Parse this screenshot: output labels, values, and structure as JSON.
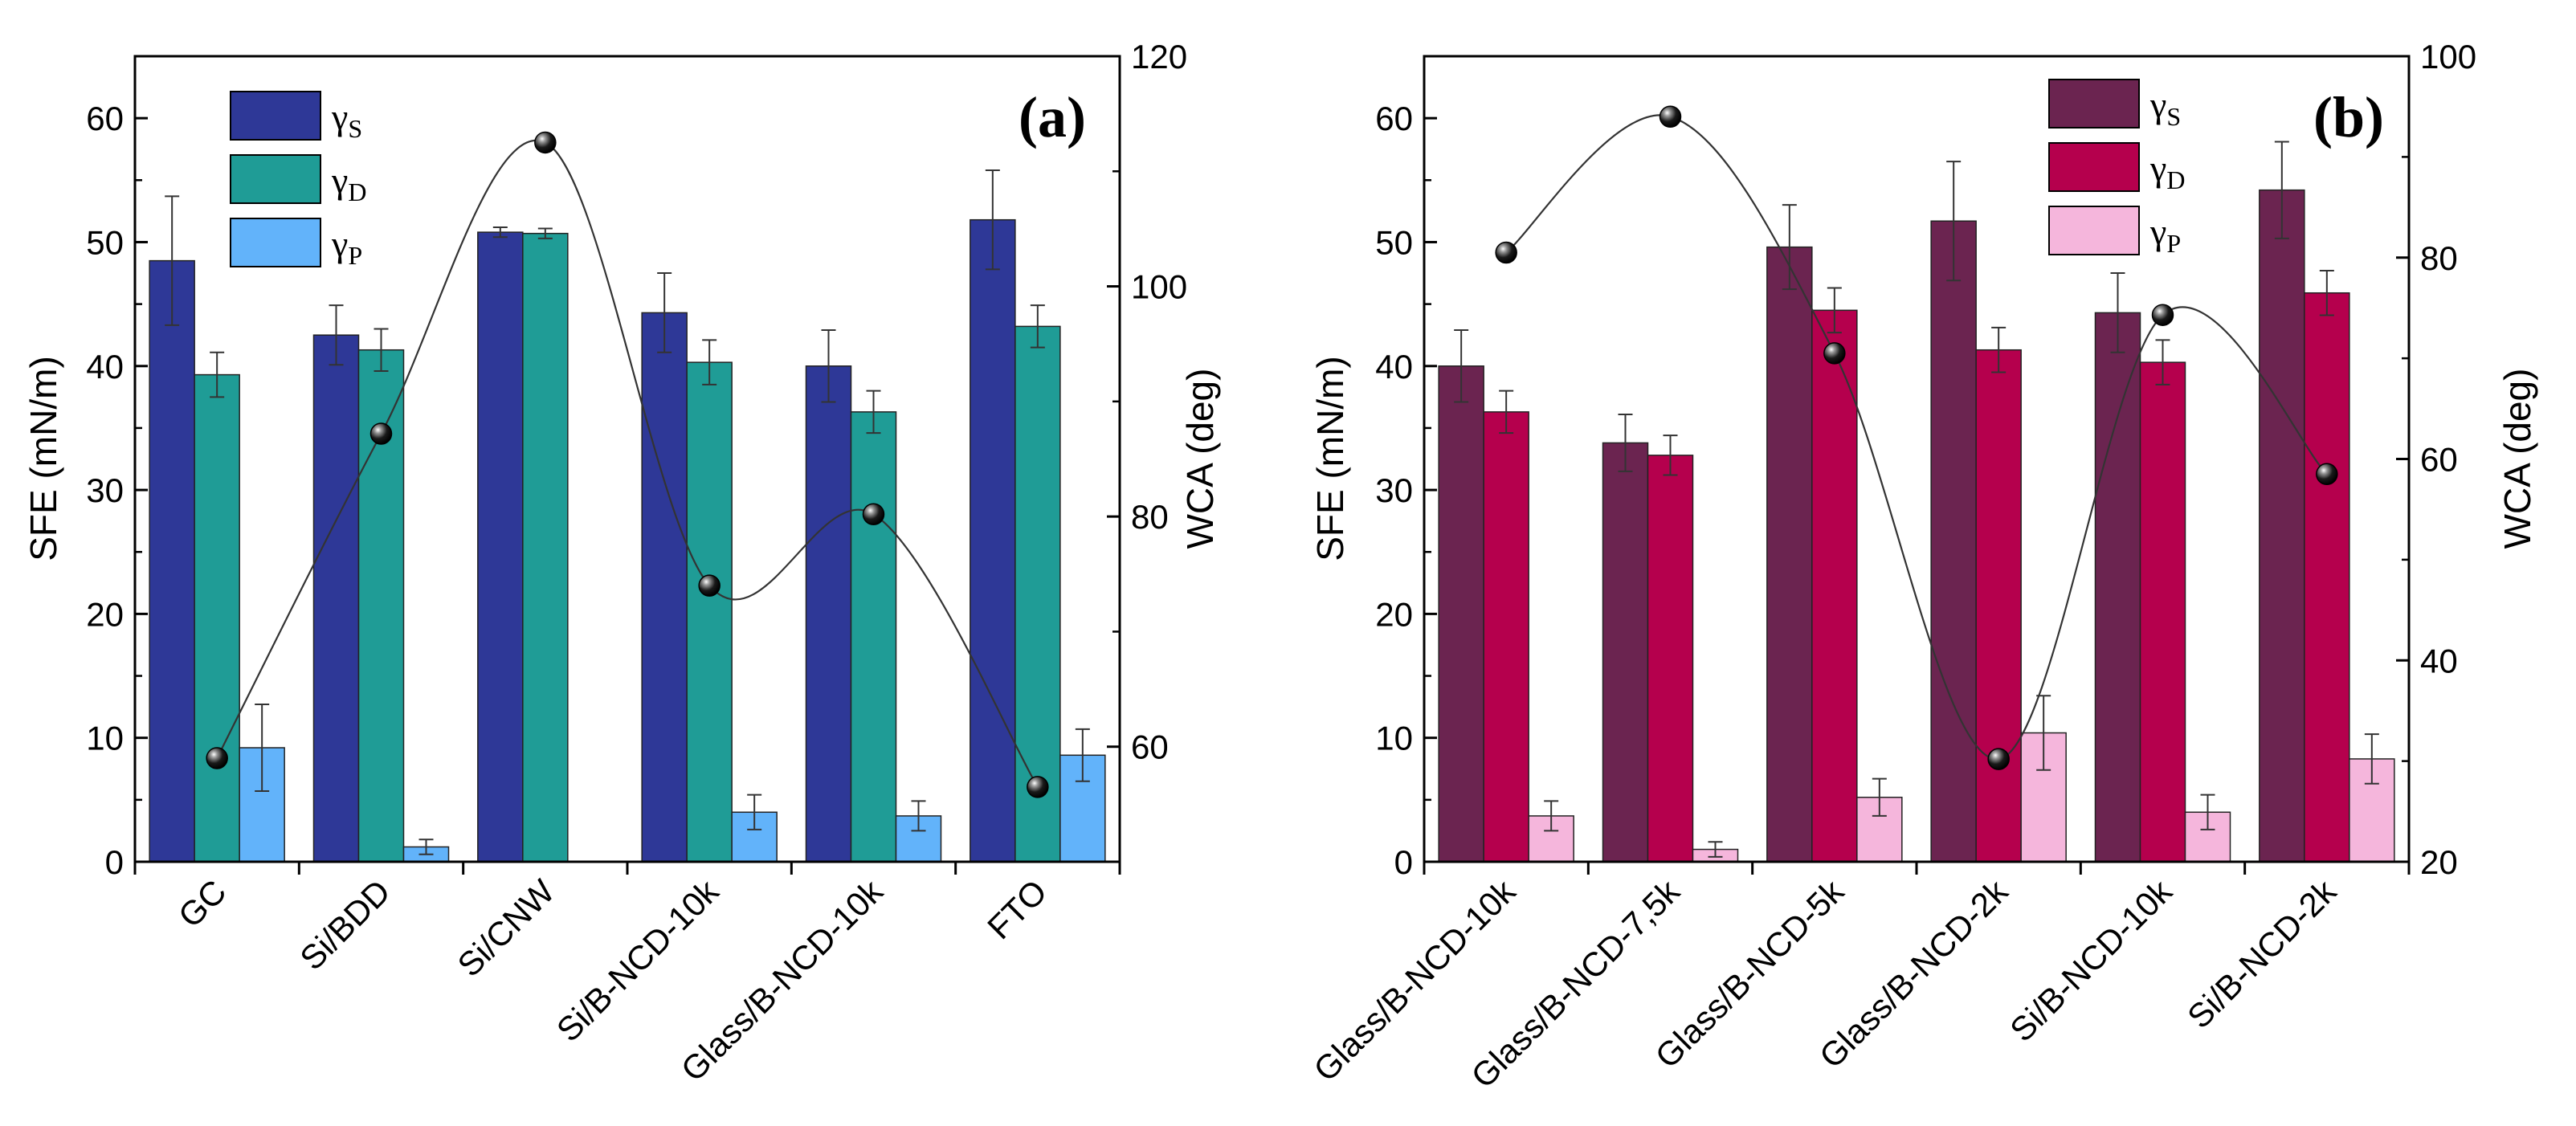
{
  "panels": [
    {
      "label": "(a)",
      "y_left_label": "SFE (mN/m)",
      "y_right_label": "WCA (deg)",
      "y_left_ticks": [
        "0",
        "10",
        "20",
        "30",
        "40",
        "50",
        "60"
      ],
      "y_right_ticks": [
        "60",
        "80",
        "100",
        "120"
      ],
      "legend": [
        {
          "sym": "γ",
          "sub": "S"
        },
        {
          "sym": "γ",
          "sub": "D"
        },
        {
          "sym": "γ",
          "sub": "P"
        }
      ],
      "colors": {
        "S": "#2e3897",
        "D": "#1f9c96",
        "P": "#62b3fa"
      }
    },
    {
      "label": "(b)",
      "y_left_label": "SFE (mN/m)",
      "y_right_label": "WCA (deg)",
      "y_left_ticks": [
        "0",
        "10",
        "20",
        "30",
        "40",
        "50",
        "60"
      ],
      "y_right_ticks": [
        "20",
        "40",
        "60",
        "80",
        "100"
      ],
      "legend": [
        {
          "sym": "γ",
          "sub": "S"
        },
        {
          "sym": "γ",
          "sub": "D"
        },
        {
          "sym": "γ",
          "sub": "P"
        }
      ],
      "colors": {
        "S": "#6b2450",
        "D": "#b5004d",
        "P": "#f5b6dc"
      }
    }
  ],
  "chart_data": [
    {
      "type": "bar",
      "title": "(a)",
      "xlabel": "",
      "ylabel": "SFE (mN/m)",
      "ylabel_right": "WCA (deg)",
      "ylim": [
        0,
        65
      ],
      "ylim_right": [
        50,
        120
      ],
      "categories": [
        "GC",
        "Si/BDD",
        "Si/CNW",
        "Si/B-NCD-10k",
        "Glass/B-NCD-10k",
        "FTO"
      ],
      "series": [
        {
          "name": "γS",
          "values": [
            48.5,
            42.5,
            50.8,
            44.3,
            40.0,
            51.8
          ],
          "errors": [
            5.2,
            2.4,
            0.4,
            3.2,
            2.9,
            4.0
          ]
        },
        {
          "name": "γD",
          "values": [
            39.3,
            41.3,
            50.7,
            40.3,
            36.3,
            43.2
          ],
          "errors": [
            1.8,
            1.7,
            0.4,
            1.8,
            1.7,
            1.7
          ]
        },
        {
          "name": "γP",
          "values": [
            9.2,
            1.2,
            0.0,
            4.0,
            3.7,
            8.6
          ],
          "errors": [
            3.5,
            0.6,
            0.0,
            1.4,
            1.2,
            2.1
          ]
        }
      ],
      "wca": {
        "name": "WCA",
        "values": [
          59.0,
          87.2,
          112.5,
          74.0,
          80.2,
          56.5
        ]
      }
    },
    {
      "type": "bar",
      "title": "(b)",
      "xlabel": "",
      "ylabel": "SFE (mN/m)",
      "ylabel_right": "WCA (deg)",
      "ylim": [
        0,
        65
      ],
      "ylim_right": [
        20,
        100
      ],
      "categories": [
        "Glass/B-NCD-10k",
        "Glass/B-NCD-7,5k",
        "Glass/B-NCD-5k",
        "Glass/B-NCD-2k",
        "Si/B-NCD-10k",
        "Si/B-NCD-2k"
      ],
      "series": [
        {
          "name": "γS",
          "values": [
            40.0,
            33.8,
            49.6,
            51.7,
            44.3,
            54.2
          ],
          "errors": [
            2.9,
            2.3,
            3.4,
            4.8,
            3.2,
            3.9
          ]
        },
        {
          "name": "γD",
          "values": [
            36.3,
            32.8,
            44.5,
            41.3,
            40.3,
            45.9
          ],
          "errors": [
            1.7,
            1.6,
            1.8,
            1.8,
            1.8,
            1.8
          ]
        },
        {
          "name": "γP",
          "values": [
            3.7,
            1.0,
            5.2,
            10.4,
            4.0,
            8.3
          ],
          "errors": [
            1.2,
            0.6,
            1.5,
            3.0,
            1.4,
            2.0
          ]
        }
      ],
      "wca": {
        "name": "WCA",
        "values": [
          80.5,
          94.0,
          70.5,
          30.2,
          74.3,
          58.5
        ]
      }
    }
  ]
}
